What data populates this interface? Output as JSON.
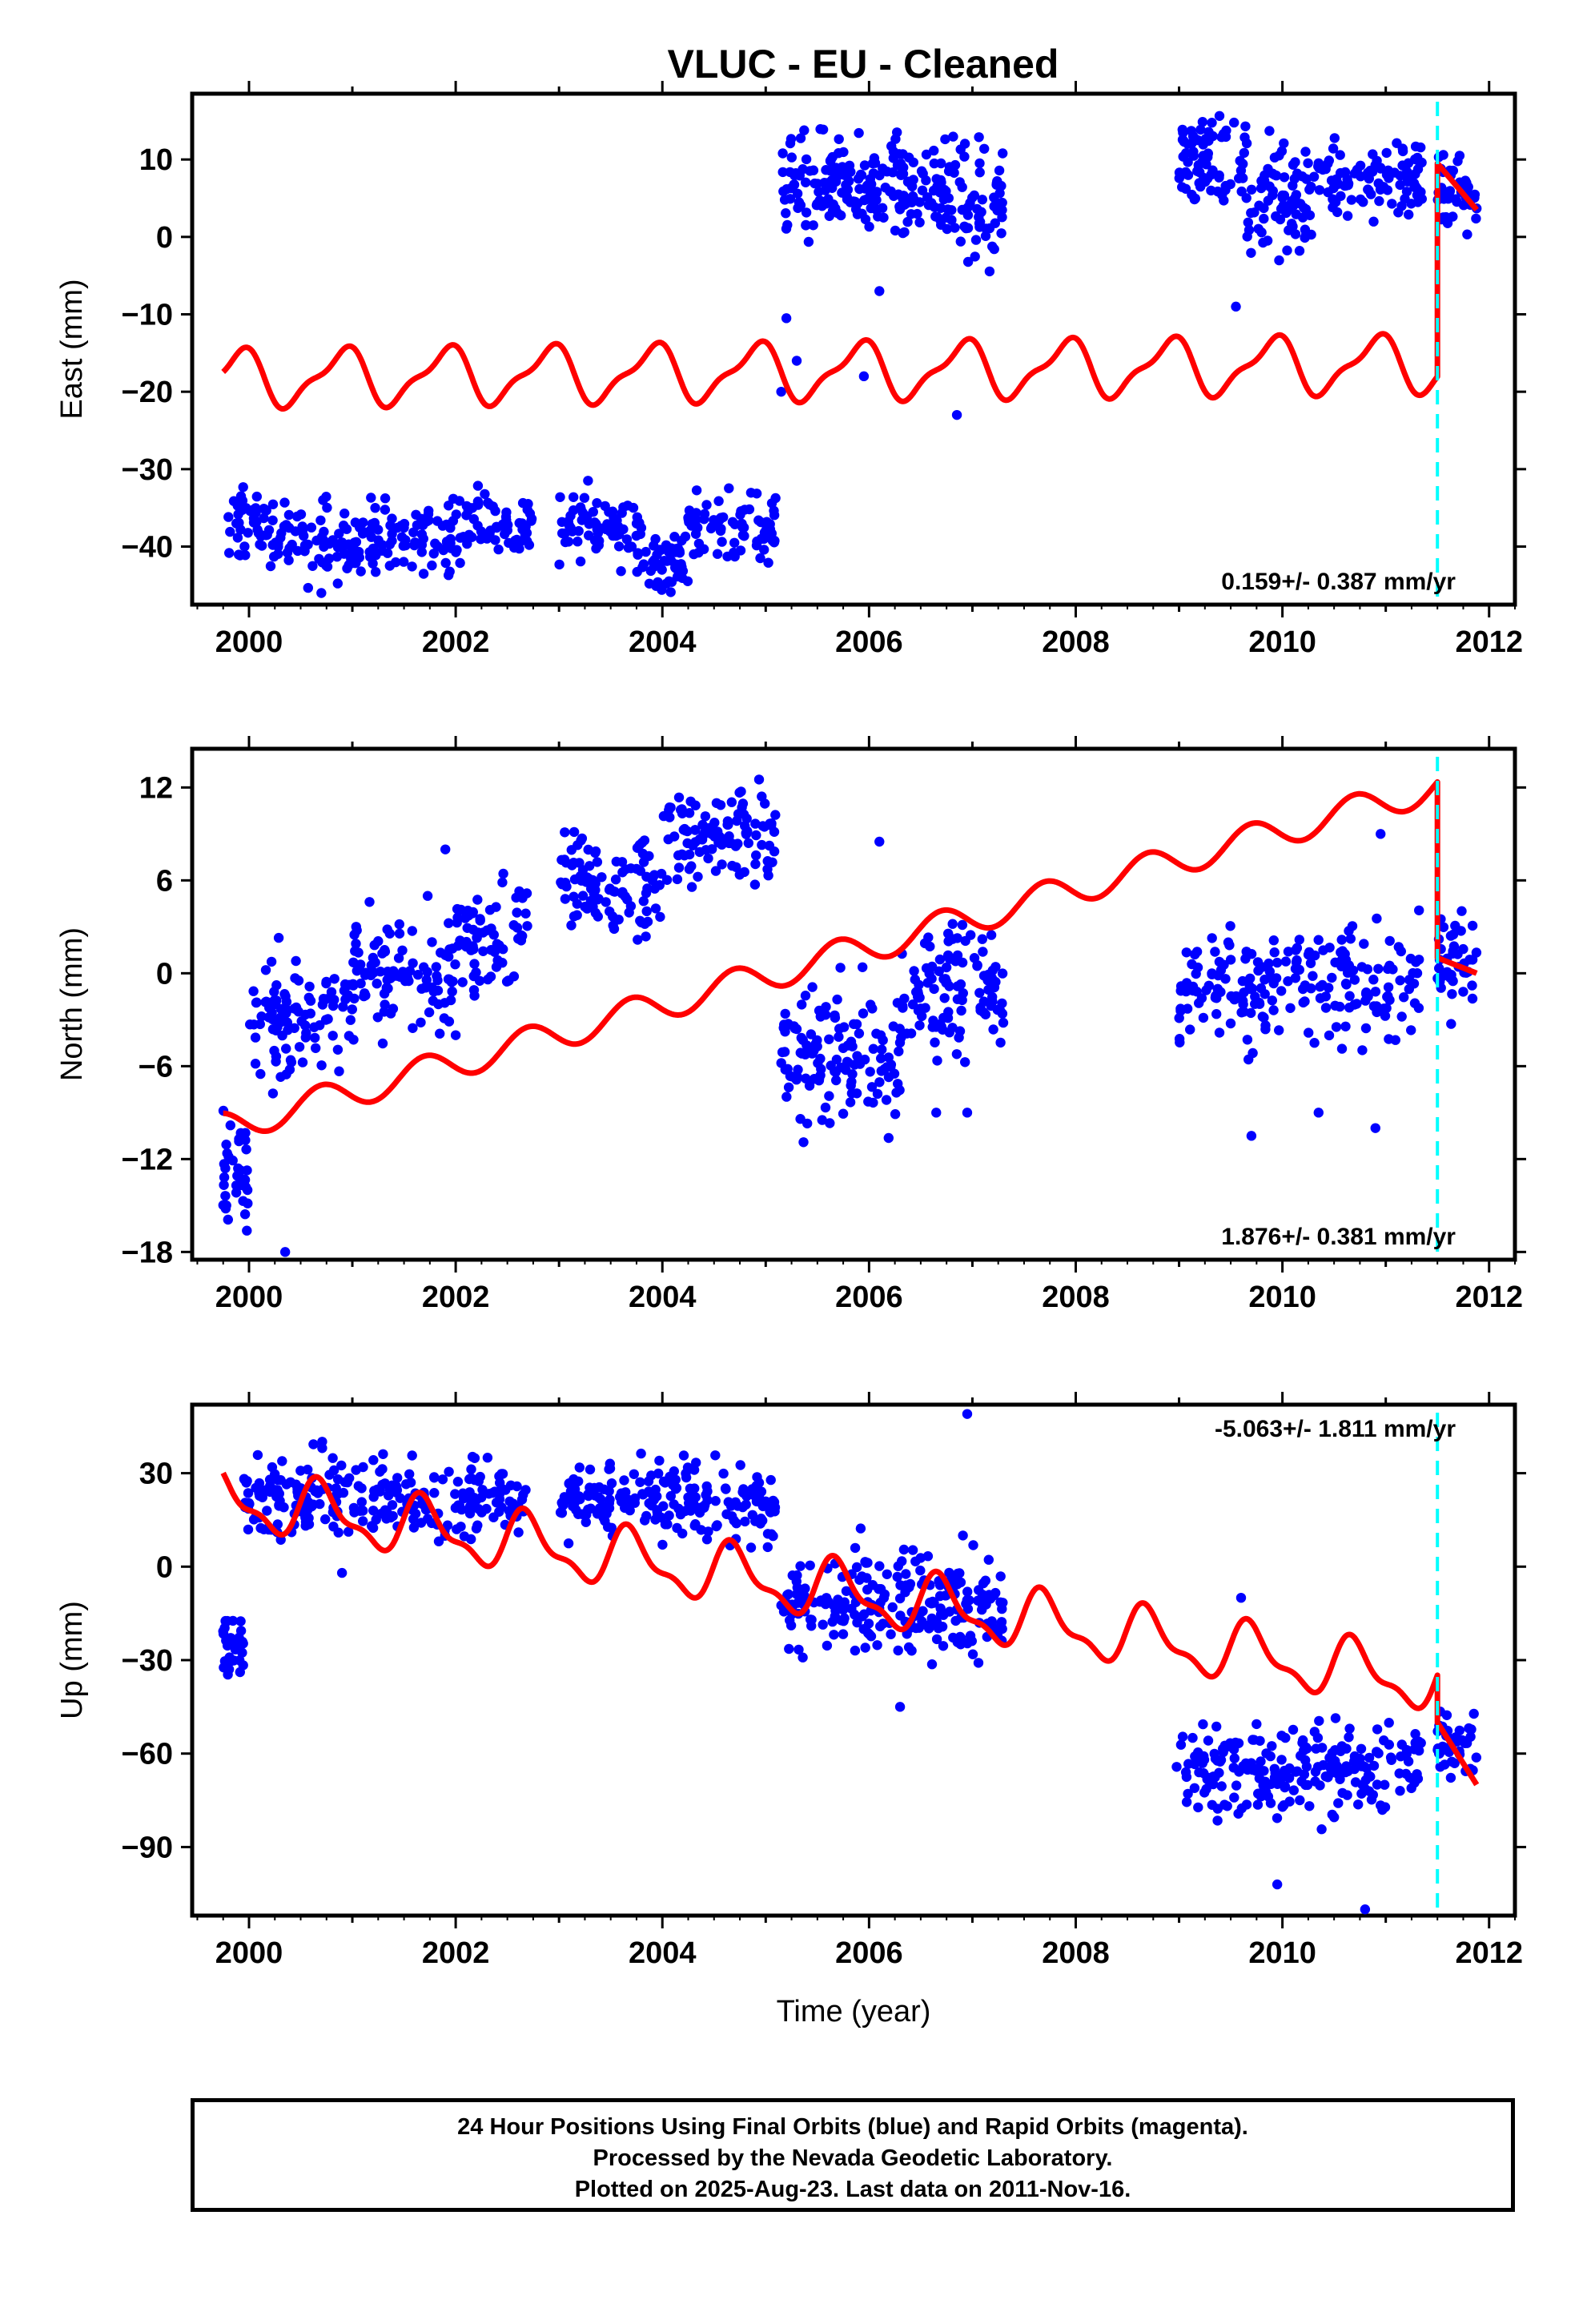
{
  "chart_data": {
    "type": "scatter",
    "title": "VLUC  - EU - Cleaned",
    "xlabel": "Time (year)",
    "xlim": [
      1999.45,
      2012.25
    ],
    "xticks": [
      2000,
      2002,
      2004,
      2006,
      2008,
      2010,
      2012
    ],
    "step_epoch": 2011.5,
    "series_legend": {
      "points": "24 Hour Positions Using Final Orbits (blue)",
      "model": "red model curve"
    },
    "colors": {
      "points": "#0000ff",
      "model": "#ff0000",
      "step_line": "#00ffff",
      "frame": "#000000"
    },
    "panels": [
      {
        "key": "east",
        "ylabel": "East (mm)",
        "ylim": [
          -47.5,
          18.5
        ],
        "yticks": [
          10,
          0,
          -10,
          -20,
          -30,
          -40
        ],
        "rate_text": "0.159+/- 0.387 mm/yr",
        "rate_position": "bottom-right",
        "step_line": true,
        "data_segments": [
          {
            "start": 1999.75,
            "end": 2000.35,
            "mean": -37.5,
            "spread": 2.5,
            "n": 55
          },
          {
            "start": 2000.35,
            "end": 2001.2,
            "mean": -39.5,
            "spread": 2.8,
            "n": 80
          },
          {
            "start": 2001.2,
            "end": 2002.0,
            "mean": -38.5,
            "spread": 2.5,
            "n": 70
          },
          {
            "start": 2002.0,
            "end": 2002.75,
            "mean": -37.0,
            "spread": 2.5,
            "n": 65
          },
          {
            "start": 2003.0,
            "end": 2003.8,
            "mean": -37.5,
            "spread": 2.5,
            "n": 75
          },
          {
            "start": 2003.8,
            "end": 2004.25,
            "mean": -42.0,
            "spread": 2.0,
            "n": 50
          },
          {
            "start": 2004.25,
            "end": 2005.1,
            "mean": -37.5,
            "spread": 2.5,
            "n": 75
          },
          {
            "start": 2005.15,
            "end": 2006.1,
            "mean": 6.0,
            "spread": 3.5,
            "n": 120
          },
          {
            "start": 2006.1,
            "end": 2006.8,
            "mean": 6.5,
            "spread": 3.5,
            "n": 90
          },
          {
            "start": 2006.8,
            "end": 2007.3,
            "mean": 4.0,
            "spread": 4.0,
            "n": 55
          },
          {
            "start": 2009.0,
            "end": 2009.65,
            "mean": 10.0,
            "spread": 3.0,
            "n": 75
          },
          {
            "start": 2009.65,
            "end": 2010.3,
            "mean": 5.5,
            "spread": 4.0,
            "n": 80
          },
          {
            "start": 2010.3,
            "end": 2011.35,
            "mean": 7.5,
            "spread": 3.0,
            "n": 95
          },
          {
            "start": 2011.5,
            "end": 2011.88,
            "mean": 6.0,
            "spread": 3.0,
            "n": 45
          }
        ],
        "outliers": [
          [
            2005.2,
            -10.5
          ],
          [
            2005.15,
            -20.0
          ],
          [
            2005.3,
            -16.0
          ],
          [
            2005.95,
            -18.0
          ],
          [
            2006.85,
            -23.0
          ],
          [
            2009.55,
            -9.0
          ],
          [
            2000.7,
            -46.0
          ],
          [
            2006.1,
            -7.0
          ]
        ],
        "model": {
          "before": {
            "t0": 1999.75,
            "y0": -18.3,
            "trend": 0.159,
            "amp1": 3.4,
            "phase1": 0.35,
            "amp2": 1.2,
            "phase2": 0.1
          },
          "after_start": 9.5,
          "after_end": 3.5
        }
      },
      {
        "key": "north",
        "ylabel": "North (mm)",
        "ylim": [
          -18.5,
          14.5
        ],
        "yticks": [
          12,
          6,
          0,
          -6,
          -12,
          -18
        ],
        "rate_text": "1.876+/- 0.381 mm/yr",
        "rate_position": "bottom-right",
        "step_line": true,
        "data_segments": [
          {
            "start": 1999.75,
            "end": 2000.0,
            "mean": -13.0,
            "spread": 2.0,
            "n": 40
          },
          {
            "start": 2000.0,
            "end": 2001.0,
            "mean": -3.0,
            "spread": 2.0,
            "n": 100
          },
          {
            "start": 2001.0,
            "end": 2002.0,
            "mean": 0.0,
            "spread": 2.0,
            "n": 100
          },
          {
            "start": 2002.0,
            "end": 2002.7,
            "mean": 2.5,
            "spread": 1.8,
            "n": 70
          },
          {
            "start": 2003.0,
            "end": 2004.0,
            "mean": 6.0,
            "spread": 1.8,
            "n": 100
          },
          {
            "start": 2004.0,
            "end": 2005.1,
            "mean": 8.5,
            "spread": 1.8,
            "n": 110
          },
          {
            "start": 2005.15,
            "end": 2006.3,
            "mean": -5.5,
            "spread": 2.3,
            "n": 130
          },
          {
            "start": 2006.3,
            "end": 2007.3,
            "mean": -1.0,
            "spread": 2.3,
            "n": 110
          },
          {
            "start": 2009.0,
            "end": 2010.0,
            "mean": -1.0,
            "spread": 2.0,
            "n": 95
          },
          {
            "start": 2010.0,
            "end": 2011.35,
            "mean": -0.5,
            "spread": 2.2,
            "n": 110
          },
          {
            "start": 2011.5,
            "end": 2011.88,
            "mean": 1.0,
            "spread": 1.8,
            "n": 40
          }
        ],
        "outliers": [
          [
            2000.35,
            -18.0
          ],
          [
            2001.9,
            8.0
          ],
          [
            2006.1,
            8.5
          ],
          [
            2006.65,
            -9.0
          ],
          [
            2006.95,
            -9.0
          ],
          [
            2009.7,
            -10.5
          ],
          [
            2010.35,
            -9.0
          ],
          [
            2010.9,
            -10.0
          ],
          [
            2010.95,
            9.0
          ],
          [
            2002.0,
            -4.0
          ]
        ],
        "model": {
          "before": {
            "t0": 1999.75,
            "y0": -10.0,
            "trend": 1.876,
            "amp1": 1.0,
            "phase1": 0.55,
            "amp2": 0.0,
            "phase2": 0.0
          },
          "after_start": 1.0,
          "after_end": 0.0
        }
      },
      {
        "key": "up",
        "ylabel": "Up (mm)",
        "ylim": [
          -112.0,
          52.0
        ],
        "yticks": [
          30,
          0,
          -30,
          -60,
          -90
        ],
        "rate_text": "-5.063+/- 1.811 mm/yr",
        "rate_position": "top-right",
        "step_line": true,
        "data_segments": [
          {
            "start": 1999.75,
            "end": 1999.95,
            "mean": -25.0,
            "spread": 5.0,
            "n": 35
          },
          {
            "start": 1999.95,
            "end": 2001.0,
            "mean": 22.0,
            "spread": 7.0,
            "n": 110
          },
          {
            "start": 2001.0,
            "end": 2002.7,
            "mean": 22.0,
            "spread": 7.0,
            "n": 150
          },
          {
            "start": 2003.0,
            "end": 2004.0,
            "mean": 22.0,
            "spread": 7.0,
            "n": 100
          },
          {
            "start": 2004.0,
            "end": 2005.1,
            "mean": 20.0,
            "spread": 7.0,
            "n": 110
          },
          {
            "start": 2005.15,
            "end": 2007.3,
            "mean": -12.0,
            "spread": 9.0,
            "n": 230
          },
          {
            "start": 2008.95,
            "end": 2011.35,
            "mean": -65.0,
            "spread": 8.0,
            "n": 220
          },
          {
            "start": 2011.5,
            "end": 2011.88,
            "mean": -57.0,
            "spread": 7.0,
            "n": 40
          }
        ],
        "outliers": [
          [
            2006.95,
            49.0
          ],
          [
            2010.8,
            -110.0
          ],
          [
            2009.95,
            -102.0
          ],
          [
            2009.6,
            -10.0
          ],
          [
            2006.3,
            -45.0
          ],
          [
            2000.9,
            -2.0
          ]
        ],
        "model": {
          "before": {
            "t0": 1999.75,
            "y0": 22.0,
            "trend": -5.063,
            "amp1": 8.5,
            "phase1": 0.55,
            "amp2": 3.5,
            "phase2": 0.0
          },
          "after_start": -50.0,
          "after_end": -70.0
        }
      }
    ]
  },
  "caption": {
    "line1": "24 Hour Positions Using Final Orbits (blue) and Rapid Orbits (magenta).",
    "line2": "Processed by the Nevada Geodetic Laboratory.",
    "line3": "Plotted on 2025-Aug-23. Last data on 2011-Nov-16."
  }
}
